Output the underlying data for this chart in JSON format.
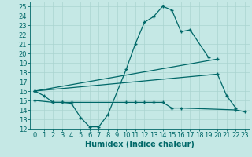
{
  "xlabel": "Humidex (Indice chaleur)",
  "bg_color": "#c5e8e5",
  "grid_color": "#aad4d0",
  "line_color": "#006868",
  "x_values": [
    0,
    1,
    2,
    3,
    4,
    5,
    6,
    7,
    8,
    9,
    10,
    11,
    12,
    13,
    14,
    15,
    16,
    17,
    18,
    19,
    20,
    21,
    22,
    23
  ],
  "ylim": [
    12,
    25.5
  ],
  "xlim": [
    -0.5,
    23.5
  ],
  "yticks": [
    12,
    13,
    14,
    15,
    16,
    17,
    18,
    19,
    20,
    21,
    22,
    23,
    24,
    25
  ],
  "series1_x": [
    0,
    1,
    2,
    3,
    4,
    5,
    6,
    7,
    8,
    10,
    11,
    12,
    13,
    14,
    15,
    16,
    17,
    19
  ],
  "series1_y": [
    16.0,
    15.5,
    14.8,
    14.8,
    14.7,
    13.2,
    12.2,
    12.2,
    13.5,
    18.3,
    21.0,
    23.3,
    23.9,
    25.0,
    24.6,
    22.3,
    22.5,
    19.6
  ],
  "series2_x": [
    0,
    20
  ],
  "series2_y": [
    16.0,
    19.4
  ],
  "series3_x": [
    0,
    20,
    21,
    22
  ],
  "series3_y": [
    16.0,
    17.8,
    15.5,
    14.2
  ],
  "series4_x": [
    0,
    2,
    3,
    4,
    10,
    11,
    12,
    13,
    14,
    15,
    16,
    22,
    23
  ],
  "series4_y": [
    15.0,
    14.8,
    14.8,
    14.8,
    14.8,
    14.8,
    14.8,
    14.8,
    14.8,
    14.2,
    14.2,
    14.0,
    13.8
  ],
  "tick_fontsize": 6,
  "xlabel_fontsize": 7
}
